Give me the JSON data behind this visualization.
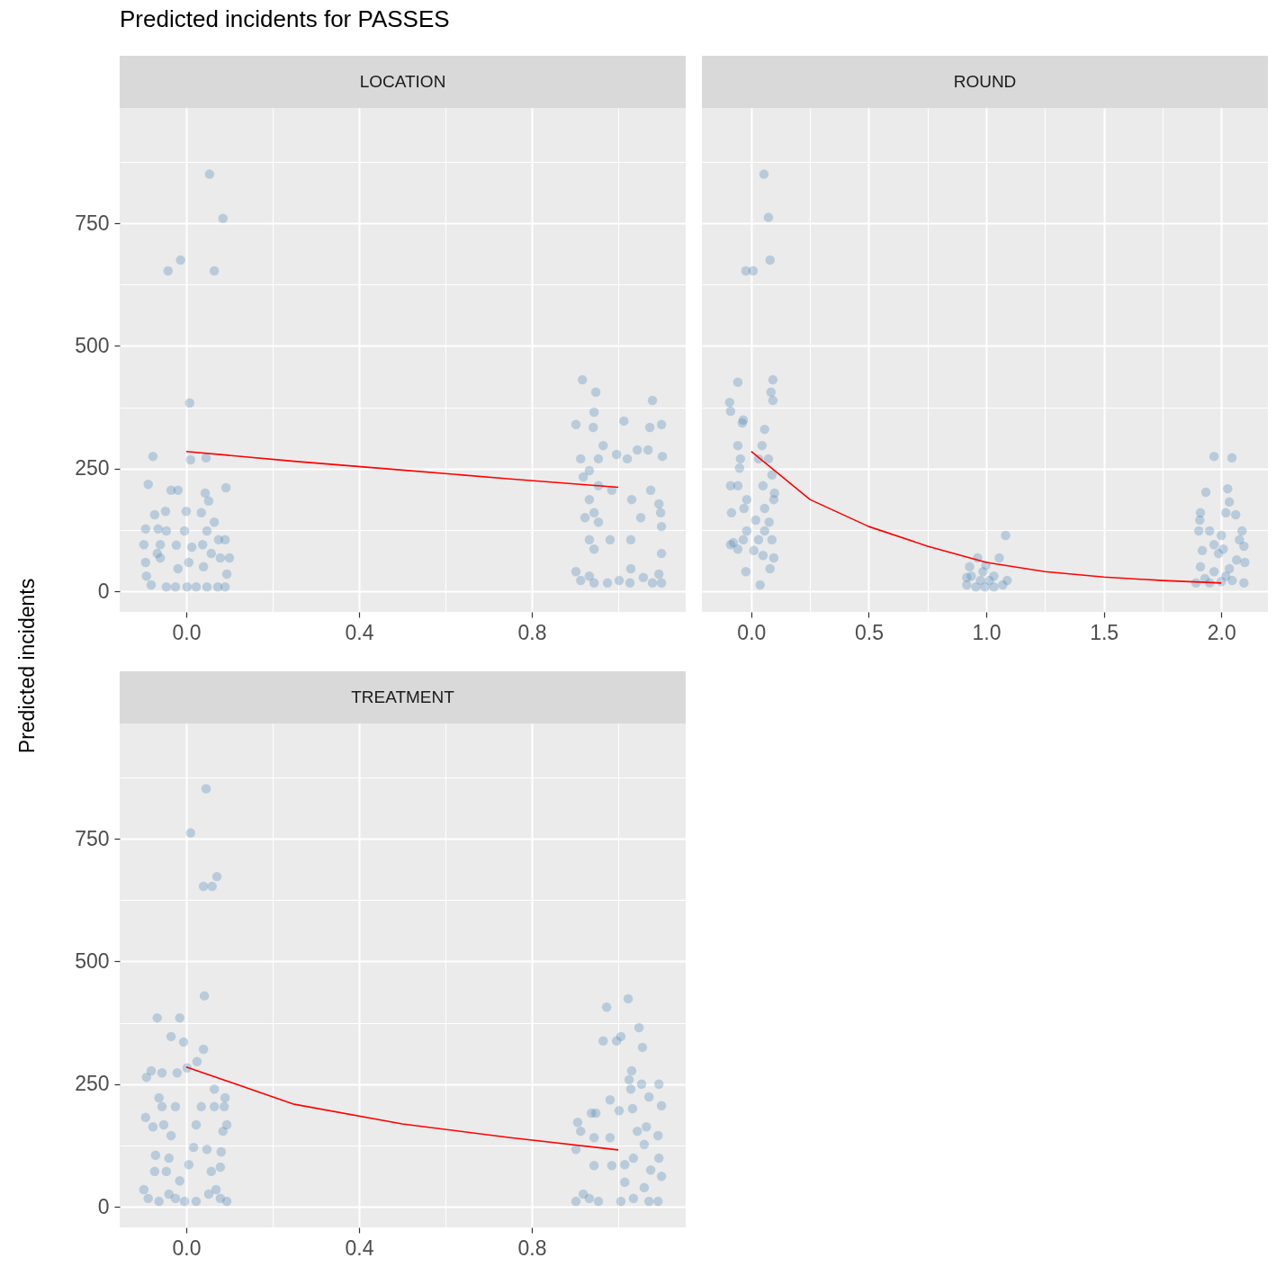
{
  "chart_data": [
    {
      "type": "scatter",
      "title": "Predicted incidents for PASSES",
      "subtitle": "LOCATION",
      "ylabel": "Predicted incidents",
      "grid": true,
      "xlim": [
        -0.154,
        1.156
      ],
      "xticks": [
        {
          "value": 0,
          "label": "0.0"
        },
        {
          "value": 0.2,
          "label": null
        },
        0.4,
        {
          "value": 0.6,
          "label": null
        },
        0.8,
        {
          "value": 1,
          "label": null
        }
      ],
      "ylim": [
        -42,
        985
      ],
      "yticks": [
        0,
        {
          "value": 125,
          "label": null
        },
        250,
        {
          "value": 375,
          "label": null
        },
        500,
        {
          "value": 625,
          "label": null
        },
        750,
        {
          "value": 875,
          "label": null
        }
      ],
      "series": [
        {
          "type": "scatter",
          "color": "#4682b4",
          "x": [
            0.054,
            0.085,
            -0.013,
            -0.042,
            0.065,
            0.008,
            -0.077,
            0.01,
            0.046,
            0.092,
            -0.088,
            -0.035,
            -0.019,
            0.044,
            0.052,
            -0.073,
            -0.048,
            0,
            0.035,
            0.065,
            0.048,
            -0.094,
            -0.065,
            -0.046,
            -0.004,
            0.075,
            0.09,
            -0.06,
            -0.023,
            0.013,
            0.038,
            -0.098,
            -0.094,
            -0.06,
            0.006,
            0.079,
            0.1,
            -0.092,
            -0.019,
            0.04,
            0.094,
            -0.081,
            -0.046,
            -0.025,
            0.002,
            0.023,
            0.048,
            0.073,
            0.09,
            -0.067,
            0.058,
            0.917,
            0.948,
            0.902,
            0.942,
            1.013,
            1.073,
            1.079,
            1.1,
            0.944,
            0.965,
            1.069,
            0.913,
            0.954,
            0.996,
            1.021,
            1.044,
            1.102,
            0.933,
            0.919,
            0.954,
            0.985,
            1.075,
            0.933,
            1.031,
            1.094,
            0.944,
            1.052,
            1.098,
            0.923,
            0.954,
            0.933,
            0.981,
            1.029,
            1.1,
            0.944,
            1.1,
            0.902,
            1.029,
            1.094,
            0.913,
            0.944,
            0.975,
            1.002,
            1.027,
            1.058,
            1.079,
            1.1,
            0.933
          ],
          "values": [
            850,
            760,
            675,
            653,
            653,
            384,
            275,
            268,
            272,
            211,
            218,
            206,
            206,
            200,
            184,
            156,
            163,
            163,
            160,
            141,
            123,
            127,
            127,
            123,
            123,
            105,
            105,
            95,
            94,
            90,
            95,
            95,
            59,
            68,
            59,
            68,
            68,
            31,
            46,
            50,
            35,
            13,
            9,
            9,
            9,
            9,
            9,
            9,
            9,
            77,
            77,
            431,
            406,
            340,
            334,
            347,
            334,
            389,
            340,
            365,
            297,
            288,
            270,
            270,
            279,
            270,
            288,
            275,
            246,
            233,
            215,
            206,
            206,
            187,
            187,
            178,
            160,
            150,
            160,
            150,
            141,
            105,
            105,
            105,
            132,
            86,
            77,
            40,
            46,
            35,
            22,
            17,
            17,
            22,
            17,
            28,
            17,
            17,
            31
          ]
        },
        {
          "type": "line",
          "color": "#ff0000",
          "x": [
            0,
            0.25,
            0.5,
            0.75,
            1
          ],
          "values": [
            285,
            265,
            247,
            229,
            212
          ]
        }
      ]
    },
    {
      "type": "scatter",
      "title": "ROUND",
      "grid": true,
      "tick_labels": "x",
      "xlim": [
        -0.21,
        2.198
      ],
      "xticks": [
        {
          "value": 0,
          "label": "0.0"
        },
        {
          "value": 0.25,
          "label": null
        },
        0.5,
        {
          "value": 0.75,
          "label": null
        },
        {
          "value": 1,
          "label": "1.0"
        },
        {
          "value": 1.25,
          "label": null
        },
        1.5,
        {
          "value": 1.75,
          "label": null
        },
        {
          "value": 2,
          "label": "2.0"
        }
      ],
      "ylim": [
        -42,
        985
      ],
      "yticks": [
        0,
        {
          "value": 125,
          "label": null
        },
        250,
        {
          "value": 375,
          "label": null
        },
        500,
        {
          "value": 625,
          "label": null
        },
        750,
        {
          "value": 875,
          "label": null
        }
      ],
      "series": [
        {
          "type": "scatter",
          "color": "#4682b4",
          "x": [
            0.054,
            0.073,
            0.08,
            -0.023,
            0.008,
            -0.057,
            0.092,
            0.084,
            0.092,
            -0.092,
            -0.088,
            -0.034,
            -0.038,
            0.057,
            -0.057,
            0.046,
            -0.046,
            0.031,
            0.073,
            -0.05,
            0.088,
            -0.088,
            -0.057,
            0.05,
            0.099,
            -0.019,
            0.096,
            -0.084,
            -0.031,
            0.057,
            0.076,
            0.019,
            -0.019,
            0.057,
            -0.088,
            -0.034,
            0.031,
            0.088,
            -0.057,
            0.011,
            0.05,
            0.096,
            -0.023,
            0.08,
            0.038,
            -0.076,
            1.082,
            0.963,
            1.055,
            0.929,
            0.936,
            0.986,
            1.032,
            0.917,
            0.956,
            0.994,
            1.032,
            1.07,
            0.975,
            1.013,
            1.089,
            0.917,
            0.998,
            1.969,
            2.045,
            1.934,
            2.027,
            2.034,
            1.911,
            2.019,
            2.061,
            1.908,
            1.904,
            1.95,
            2.088,
            2.0,
            2.077,
            2.008,
            1.919,
            1.969,
            2.096,
            1.988,
            2.065,
            2.1,
            1.911,
            1.969,
            2.034,
            1.93,
            1.892,
            1.95,
            2.0,
            2.046,
            2.096,
            2.019
          ],
          "values": [
            850,
            762,
            675,
            653,
            653,
            426,
            431,
            406,
            389,
            385,
            367,
            349,
            343,
            330,
            297,
            297,
            270,
            270,
            270,
            251,
            237,
            215,
            215,
            215,
            200,
            187,
            187,
            160,
            169,
            169,
            141,
            145,
            123,
            123,
            95,
            105,
            105,
            105,
            86,
            83,
            73,
            68,
            40,
            46,
            13,
            99,
            114,
            68,
            68,
            50,
            31,
            40,
            31,
            13,
            9,
            9,
            9,
            13,
            22,
            22,
            22,
            28,
            53,
            275,
            272,
            202,
            209,
            182,
            160,
            160,
            156,
            145,
            123,
            123,
            123,
            114,
            105,
            86,
            83,
            95,
            92,
            77,
            64,
            59,
            50,
            40,
            46,
            26,
            17,
            17,
            20,
            22,
            17,
            31
          ]
        },
        {
          "type": "line",
          "color": "#ff0000",
          "x": [
            0,
            0.25,
            0.5,
            0.75,
            1,
            1.25,
            1.5,
            1.75,
            2
          ],
          "values": [
            285,
            187,
            132,
            92,
            59,
            40,
            29,
            22,
            17
          ]
        }
      ]
    },
    {
      "type": "scatter",
      "title": "TREATMENT",
      "grid": true,
      "xlim": [
        -0.154,
        1.156
      ],
      "xticks": [
        {
          "value": 0,
          "label": "0.0"
        },
        {
          "value": 0.2,
          "label": null
        },
        0.4,
        {
          "value": 0.6,
          "label": null
        },
        0.8,
        {
          "value": 1,
          "label": null
        }
      ],
      "ylim": [
        -42,
        985
      ],
      "yticks": [
        0,
        {
          "value": 125,
          "label": null
        },
        250,
        {
          "value": 375,
          "label": null
        },
        500,
        {
          "value": 625,
          "label": null
        },
        750,
        {
          "value": 875,
          "label": null
        }
      ],
      "series": [
        {
          "type": "scatter",
          "color": "#4682b4",
          "x": [
            0.046,
            0.01,
            0.04,
            0.071,
            0.06,
            0.042,
            -0.067,
            -0.015,
            -0.035,
            -0.006,
            0.04,
            0.025,
            -0.092,
            -0.081,
            -0.056,
            -0.021,
            0.002,
            0.065,
            0.09,
            -0.063,
            -0.056,
            -0.025,
            0.035,
            0.065,
            0.088,
            -0.094,
            -0.077,
            -0.052,
            -0.035,
            0.094,
            0.085,
            0.023,
            -0.071,
            -0.04,
            0.017,
            0.048,
            0.081,
            -0.073,
            -0.046,
            0.006,
            0.058,
            0.079,
            -0.015,
            0.069,
            -0.098,
            -0.088,
            -0.063,
            -0.025,
            -0.004,
            0.023,
            0.052,
            0.079,
            0.094,
            -0.04,
            1.023,
            0.973,
            1.048,
            0.965,
            0.996,
            1.006,
            1.056,
            1.031,
            1.025,
            1.054,
            1.094,
            1.029,
            1.071,
            0.981,
            1.1,
            0.948,
            1.002,
            1.033,
            1.065,
            0.913,
            0.944,
            0.981,
            1.044,
            1.092,
            0.902,
            1.06,
            1.094,
            0.944,
            0.985,
            1.015,
            1.035,
            1.075,
            1.1,
            1.015,
            1.06,
            0.919,
            0.933,
            0.954,
            1.006,
            1.035,
            1.071,
            1.092,
            0.902,
            0.906,
            0.938
          ],
          "values": [
            852,
            762,
            653,
            673,
            653,
            430,
            385,
            385,
            347,
            336,
            321,
            296,
            264,
            277,
            273,
            273,
            283,
            240,
            222,
            222,
            204,
            204,
            204,
            204,
            204,
            182,
            163,
            167,
            145,
            167,
            154,
            167,
            105,
            99,
            121,
            117,
            112,
            72,
            72,
            86,
            72,
            81,
            53,
            35,
            35,
            17,
            11,
            17,
            11,
            11,
            26,
            17,
            11,
            26,
            424,
            407,
            365,
            338,
            338,
            347,
            325,
            277,
            259,
            250,
            250,
            240,
            224,
            218,
            206,
            191,
            196,
            200,
            163,
            154,
            141,
            141,
            154,
            145,
            117,
            127,
            99,
            84,
            84,
            86,
            99,
            75,
            62,
            50,
            39,
            26,
            17,
            11,
            11,
            17,
            11,
            11,
            11,
            172,
            191
          ]
        },
        {
          "type": "line",
          "color": "#ff0000",
          "x": [
            0,
            0.25,
            0.5,
            0.75,
            1
          ],
          "values": [
            285,
            209,
            169,
            141,
            116
          ]
        }
      ]
    }
  ]
}
